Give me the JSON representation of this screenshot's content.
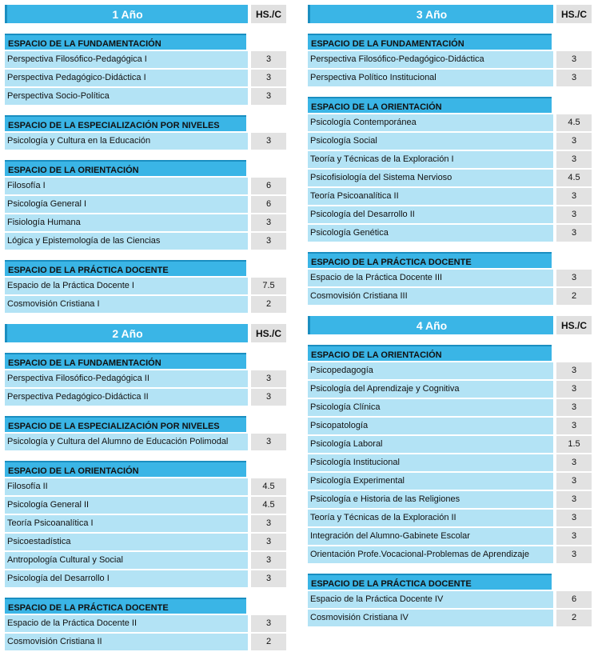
{
  "hs_label": "HS./C",
  "left": [
    {
      "title": "1 Año",
      "sections": [
        {
          "title": "ESPACIO DE LA FUNDAMENTACIÓN",
          "rows": [
            {
              "name": "Perspectiva Filosófico-Pedagógica I",
              "hs": "3"
            },
            {
              "name": "Perspectiva Pedagógico-Didáctica I",
              "hs": "3"
            },
            {
              "name": "Perspectiva Socio-Política",
              "hs": "3"
            }
          ]
        },
        {
          "title": "ESPACIO DE LA ESPECIALIZACIÓN POR NIVELES",
          "rows": [
            {
              "name": "Psicología y Cultura en la Educación",
              "hs": "3"
            }
          ]
        },
        {
          "title": "ESPACIO DE LA ORIENTACIÓN",
          "rows": [
            {
              "name": "Filosofía I",
              "hs": "6"
            },
            {
              "name": "Psicología General I",
              "hs": "6"
            },
            {
              "name": "Fisiología Humana",
              "hs": "3"
            },
            {
              "name": "Lógica y Epistemología de las Ciencias",
              "hs": "3"
            }
          ]
        },
        {
          "title": "ESPACIO DE LA PRÁCTICA DOCENTE",
          "rows": [
            {
              "name": "Espacio de la Práctica Docente I",
              "hs": "7.5"
            },
            {
              "name": "Cosmovisión Cristiana I",
              "hs": "2"
            }
          ]
        }
      ]
    },
    {
      "title": "2 Año",
      "sections": [
        {
          "title": "ESPACIO DE LA FUNDAMENTACIÓN",
          "rows": [
            {
              "name": "Perspectiva Filosófico-Pedagógica II",
              "hs": "3"
            },
            {
              "name": "Perspectiva Pedagógico-Didáctica II",
              "hs": "3"
            }
          ]
        },
        {
          "title": "ESPACIO DE LA ESPECIALIZACIÓN POR NIVELES",
          "rows": [
            {
              "name": "Psicología y Cultura del Alumno de Educación Polimodal",
              "hs": "3"
            }
          ]
        },
        {
          "title": "ESPACIO DE LA ORIENTACIÓN",
          "rows": [
            {
              "name": "Filosofía II",
              "hs": "4.5"
            },
            {
              "name": "Psicología General II",
              "hs": "4.5"
            },
            {
              "name": "Teoría Psicoanalítica I",
              "hs": "3"
            },
            {
              "name": "Psicoestadística",
              "hs": "3"
            },
            {
              "name": "Antropología Cultural y Social",
              "hs": "3"
            },
            {
              "name": "Psicología del Desarrollo I",
              "hs": "3"
            }
          ]
        },
        {
          "title": "ESPACIO DE LA PRÁCTICA DOCENTE",
          "rows": [
            {
              "name": "Espacio de la Práctica Docente II",
              "hs": "3"
            },
            {
              "name": "Cosmovisión Cristiana II",
              "hs": "2"
            }
          ]
        }
      ]
    }
  ],
  "right": [
    {
      "title": "3 Año",
      "sections": [
        {
          "title": "ESPACIO DE LA FUNDAMENTACIÓN",
          "rows": [
            {
              "name": "Perspectiva Filosófico-Pedagógico-Didáctica",
              "hs": "3"
            },
            {
              "name": "Perspectiva Político Institucional",
              "hs": "3"
            }
          ]
        },
        {
          "title": "ESPACIO DE LA ORIENTACIÓN",
          "rows": [
            {
              "name": "Psicología Contemporánea",
              "hs": "4.5"
            },
            {
              "name": "Psicología Social",
              "hs": "3"
            },
            {
              "name": "Teoría y Técnicas de la Exploración I",
              "hs": "3"
            },
            {
              "name": "Psicofisiología del Sistema Nervioso",
              "hs": "4.5"
            },
            {
              "name": "Teoría Psicoanalítica II",
              "hs": "3"
            },
            {
              "name": "Psicología del Desarrollo II",
              "hs": "3"
            },
            {
              "name": "Psicología Genética",
              "hs": "3"
            }
          ]
        },
        {
          "title": "ESPACIO DE LA PRÁCTICA DOCENTE",
          "rows": [
            {
              "name": "Espacio de la Práctica Docente III",
              "hs": "3"
            },
            {
              "name": "Cosmovisión Cristiana III",
              "hs": "2"
            }
          ]
        }
      ]
    },
    {
      "title": "4 Año",
      "sections": [
        {
          "title": "ESPACIO DE LA ORIENTACIÓN",
          "rows": [
            {
              "name": "Psicopedagogía",
              "hs": "3"
            },
            {
              "name": "Psicología del Aprendizaje y Cognitiva",
              "hs": "3"
            },
            {
              "name": "Psicología Clínica",
              "hs": "3"
            },
            {
              "name": "Psicopatología",
              "hs": "3"
            },
            {
              "name": "Psicología Laboral",
              "hs": "1.5"
            },
            {
              "name": "Psicología Institucional",
              "hs": "3"
            },
            {
              "name": "Psicología Experimental",
              "hs": "3"
            },
            {
              "name": "Psicología e Historia de las Religiones",
              "hs": "3"
            },
            {
              "name": "Teoría y Técnicas de la Exploración II",
              "hs": "3"
            },
            {
              "name": "Integración del Alumno-Gabinete Escolar",
              "hs": "3"
            },
            {
              "name": "Orientación Profe.Vocacional-Problemas de Aprendizaje",
              "hs": "3"
            }
          ]
        },
        {
          "title": "ESPACIO DE LA PRÁCTICA DOCENTE",
          "rows": [
            {
              "name": "Espacio de la Práctica Docente IV",
              "hs": "6"
            },
            {
              "name": "Cosmovisión Cristiana IV",
              "hs": "2"
            }
          ]
        }
      ]
    }
  ]
}
